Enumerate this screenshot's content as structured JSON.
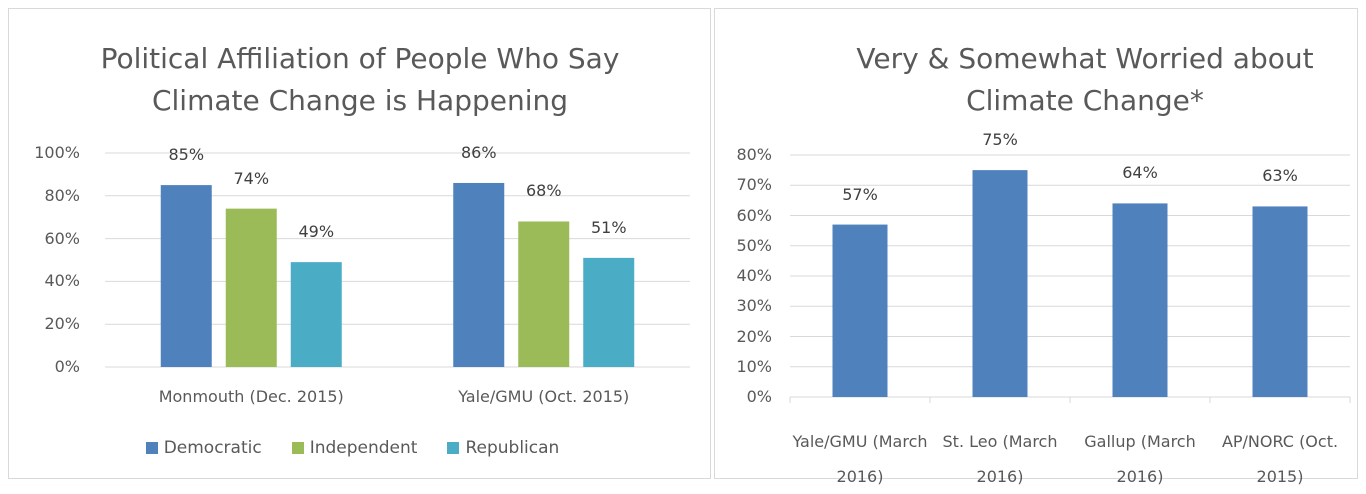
{
  "chart_data": [
    {
      "type": "bar",
      "title": "Political Affiliation of People Who Say Climate Change is Happening",
      "categories": [
        "Monmouth (Dec. 2015)",
        "Yale/GMU (Oct. 2015)"
      ],
      "series": [
        {
          "name": "Democratic",
          "color": "#4f81bd",
          "values": [
            85,
            86
          ],
          "value_labels": [
            "85%",
            "86%"
          ]
        },
        {
          "name": "Independent",
          "color": "#9bbb59",
          "values": [
            74,
            68
          ],
          "value_labels": [
            "74%",
            "68%"
          ]
        },
        {
          "name": "Republican",
          "color": "#4bacc6",
          "values": [
            49,
            51
          ],
          "value_labels": [
            "49%",
            "51%"
          ]
        }
      ],
      "ylim": [
        0,
        100
      ],
      "yticks": [
        {
          "value": 0,
          "label": "0%"
        },
        {
          "value": 20,
          "label": "20%"
        },
        {
          "value": 40,
          "label": "40%"
        },
        {
          "value": 60,
          "label": "60%"
        },
        {
          "value": 80,
          "label": "80%"
        },
        {
          "value": 100,
          "label": "100%"
        }
      ],
      "grid": true,
      "legend": "bottom"
    },
    {
      "type": "bar",
      "title": "Very & Somewhat Worried about Climate Change*",
      "categories": [
        "Yale/GMU (March 2016)",
        "St. Leo (March 2016)",
        "Gallup (March 2016)",
        "AP/NORC (Oct. 2015)"
      ],
      "values": [
        57,
        75,
        64,
        63
      ],
      "value_labels": [
        "57%",
        "75%",
        "64%",
        "63%"
      ],
      "color": "#4f81bd",
      "ylim": [
        0,
        80
      ],
      "yticks": [
        {
          "value": 0,
          "label": "0%"
        },
        {
          "value": 10,
          "label": "10%"
        },
        {
          "value": 20,
          "label": "20%"
        },
        {
          "value": 30,
          "label": "30%"
        },
        {
          "value": 40,
          "label": "40%"
        },
        {
          "value": 50,
          "label": "50%"
        },
        {
          "value": 60,
          "label": "60%"
        },
        {
          "value": 70,
          "label": "70%"
        },
        {
          "value": 80,
          "label": "80%"
        }
      ],
      "grid": true
    }
  ]
}
